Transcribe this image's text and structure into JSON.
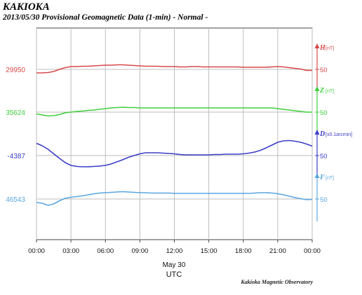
{
  "header": {
    "station": "KAKIOKA",
    "subtitle": "2013/05/30  Provisional Geomagnetic Data (1-min)  - Normal -"
  },
  "footer": {
    "credit": "Kakioka Magnetic Observatory"
  },
  "chart_data": {
    "type": "line",
    "x_ticks": [
      "00:00",
      "03:00",
      "06:00",
      "09:00",
      "12:00",
      "15:00",
      "18:00",
      "21:00",
      "00:00"
    ],
    "x_date_label": "May 30",
    "xlabel": "UTC",
    "xlim": [
      0,
      24
    ],
    "grid": true,
    "scale_step": "50",
    "series": [
      {
        "name": "H",
        "unit": "[nT]",
        "baseline_label": "29950",
        "color": "#d84a4a",
        "x": [
          0,
          0.5,
          1,
          1.5,
          2,
          2.5,
          3,
          3.5,
          4,
          4.5,
          5,
          5.5,
          6,
          6.5,
          7,
          7.5,
          8,
          8.5,
          9,
          9.5,
          10,
          10.5,
          11,
          11.5,
          12,
          12.5,
          13,
          13.5,
          14,
          14.5,
          15,
          15.5,
          16,
          16.5,
          17,
          17.5,
          18,
          18.5,
          19,
          19.5,
          20,
          20.5,
          21,
          21.5,
          22,
          22.5,
          23,
          23.5,
          24
        ],
        "y": [
          -10,
          -10,
          -9,
          -6,
          0,
          5,
          8,
          8,
          9,
          9,
          10,
          11,
          12,
          12,
          13,
          13,
          12,
          11,
          10,
          9,
          9,
          9,
          8,
          8,
          8,
          7,
          7,
          8,
          8,
          7,
          7,
          7,
          7,
          7,
          7,
          7,
          6,
          6,
          6,
          6,
          6,
          7,
          8,
          7,
          5,
          3,
          1,
          -3,
          -3
        ]
      },
      {
        "name": "Z",
        "unit": "[nT]",
        "baseline_label": "35624",
        "color": "#3fcf3f",
        "x": [
          0,
          0.5,
          1,
          1.5,
          2,
          2.5,
          3,
          3.5,
          4,
          4.5,
          5,
          5.5,
          6,
          6.5,
          7,
          7.5,
          8,
          8.5,
          9,
          9.5,
          10,
          10.5,
          11,
          11.5,
          12,
          12.5,
          13,
          13.5,
          14,
          14.5,
          15,
          15.5,
          16,
          16.5,
          17,
          17.5,
          18,
          18.5,
          19,
          19.5,
          20,
          20.5,
          21,
          21.5,
          22,
          22.5,
          23,
          23.5,
          24
        ],
        "y": [
          -5,
          -8,
          -11,
          -10,
          -7,
          -2,
          0,
          2,
          3,
          5,
          6,
          8,
          10,
          12,
          13,
          14,
          13,
          13,
          12,
          12,
          12,
          12,
          12,
          12,
          12,
          12,
          12,
          12,
          12,
          12,
          12,
          12,
          12,
          12,
          12,
          12,
          12,
          12,
          12,
          12,
          12,
          12,
          10,
          8,
          6,
          4,
          2,
          0,
          0
        ]
      },
      {
        "name": "D",
        "unit": "[x0.1arcmin]",
        "baseline_label": "-4387",
        "color": "#3d3dc8",
        "x": [
          0,
          0.5,
          1,
          1.5,
          2,
          2.5,
          3,
          3.5,
          4,
          4.5,
          5,
          5.5,
          6,
          6.5,
          7,
          7.5,
          8,
          8.5,
          9,
          9.5,
          10,
          10.5,
          11,
          11.5,
          12,
          12.5,
          13,
          13.5,
          14,
          14.5,
          15,
          15.5,
          16,
          16.5,
          17,
          17.5,
          18,
          18.5,
          19,
          19.5,
          20,
          20.5,
          21,
          21.5,
          22,
          22.5,
          23,
          23.5,
          24
        ],
        "y": [
          35,
          28,
          18,
          5,
          -8,
          -20,
          -28,
          -31,
          -32,
          -32,
          -31,
          -30,
          -28,
          -24,
          -18,
          -12,
          -5,
          0,
          5,
          8,
          8,
          8,
          7,
          6,
          5,
          3,
          2,
          2,
          2,
          2,
          2,
          3,
          3,
          4,
          4,
          4,
          5,
          7,
          10,
          15,
          22,
          30,
          38,
          42,
          43,
          41,
          38,
          33,
          27
        ]
      },
      {
        "name": "F",
        "unit": "[nT]",
        "baseline_label": "46543",
        "color": "#5aa6e0",
        "x": [
          0,
          0.5,
          1,
          1.5,
          2,
          2.5,
          3,
          3.5,
          4,
          4.5,
          5,
          5.5,
          6,
          6.5,
          7,
          7.5,
          8,
          8.5,
          9,
          9.5,
          10,
          10.5,
          11,
          11.5,
          12,
          12.5,
          13,
          13.5,
          14,
          14.5,
          15,
          15.5,
          16,
          16.5,
          17,
          17.5,
          18,
          18.5,
          19,
          19.5,
          20,
          20.5,
          21,
          21.5,
          22,
          22.5,
          23,
          23.5,
          24
        ],
        "y": [
          -10,
          -12,
          -18,
          -14,
          -5,
          2,
          5,
          7,
          9,
          12,
          15,
          17,
          18,
          19,
          20,
          21,
          20,
          19,
          18,
          18,
          17,
          17,
          17,
          17,
          16,
          16,
          16,
          16,
          16,
          16,
          16,
          16,
          16,
          16,
          16,
          16,
          16,
          16,
          17,
          18,
          18,
          17,
          15,
          12,
          8,
          4,
          1,
          -2,
          -1
        ]
      }
    ]
  }
}
